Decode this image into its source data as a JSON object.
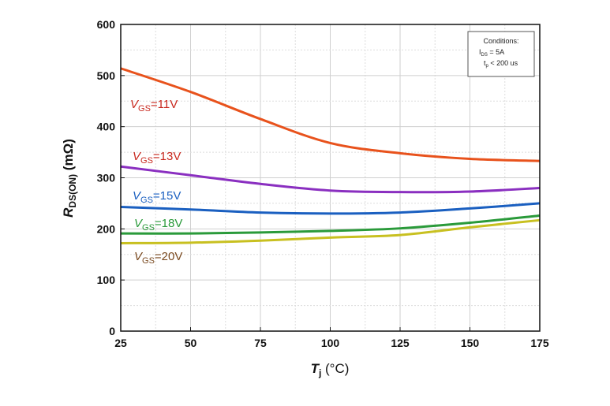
{
  "chart_data": {
    "type": "line",
    "title": "",
    "xlabel": "T_j (°C)",
    "xlabel_main": "T",
    "xlabel_sub": "j",
    "xlabel_rest": " (°C)",
    "ylabel_main": "R",
    "ylabel_sub": "DS(ON)",
    "ylabel_rest": " (mΩ)",
    "xlim": [
      25,
      175
    ],
    "ylim": [
      0,
      600
    ],
    "xticks": [
      25,
      50,
      75,
      100,
      125,
      150,
      175
    ],
    "yticks": [
      0,
      100,
      200,
      300,
      400,
      500,
      600
    ],
    "grid": true,
    "x": [
      25,
      50,
      75,
      100,
      125,
      150,
      175
    ],
    "series": [
      {
        "name": "VGS=11V",
        "label_main": "V",
        "label_sub": "GS",
        "label_rest": "=11V",
        "color": "#e8521c",
        "label_color": "#c8281e",
        "values": [
          514,
          468,
          415,
          368,
          348,
          337,
          333
        ]
      },
      {
        "name": "VGS=13V",
        "label_main": "V",
        "label_sub": "GS",
        "label_rest": "=13V",
        "color": "#8a2fc0",
        "label_color": "#c8281e",
        "values": [
          322,
          305,
          288,
          275,
          272,
          273,
          280
        ]
      },
      {
        "name": "VGS=15V",
        "label_main": "V",
        "label_sub": "GS",
        "label_rest": "=15V",
        "color": "#1a5fc0",
        "label_color": "#1a5fc0",
        "values": [
          243,
          238,
          232,
          230,
          232,
          240,
          250
        ]
      },
      {
        "name": "VGS=18V",
        "label_main": "V",
        "label_sub": "GS",
        "label_rest": "=18V",
        "color": "#2a9a3a",
        "label_color": "#2a9a3a",
        "values": [
          191,
          191,
          193,
          196,
          201,
          212,
          226
        ]
      },
      {
        "name": "VGS=20V",
        "label_main": "V",
        "label_sub": "GS",
        "label_rest": "=20V",
        "color": "#c8c020",
        "label_color": "#7a4a20",
        "values": [
          172,
          173,
          177,
          183,
          188,
          203,
          217
        ]
      }
    ],
    "annotation": {
      "title": "Conditions:",
      "line1": "I_DS = 5A",
      "line1_main": "I",
      "line1_sub": "DS",
      "line1_rest": " =  5A",
      "line2": "t_p < 200 us",
      "line2_main": "t",
      "line2_sub": "p",
      "line2_rest": " < 200 us",
      "placement": "top-right"
    }
  }
}
